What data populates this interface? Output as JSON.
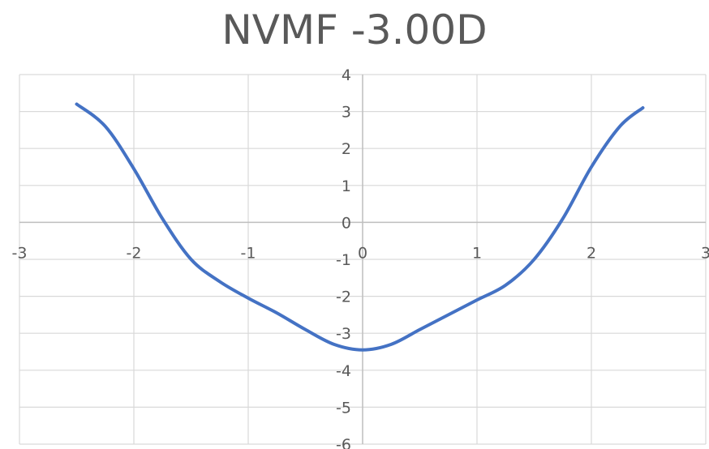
{
  "chart_data": {
    "type": "line",
    "title": "NVMF -3.00D",
    "xlabel": "",
    "ylabel": "",
    "xlim": [
      -3,
      3
    ],
    "ylim": [
      -6,
      4
    ],
    "x_ticks": [
      -3,
      -2,
      -1,
      0,
      1,
      2,
      3
    ],
    "y_ticks": [
      -6,
      -5,
      -4,
      -3,
      -2,
      -1,
      0,
      1,
      2,
      3,
      4
    ],
    "grid": true,
    "legend": "none",
    "series": [
      {
        "color": "#4472C4",
        "points": [
          [
            -2.5,
            3.2
          ],
          [
            -2.25,
            2.6
          ],
          [
            -2.0,
            1.45
          ],
          [
            -1.75,
            0.1
          ],
          [
            -1.5,
            -1.0
          ],
          [
            -1.25,
            -1.6
          ],
          [
            -1.0,
            -2.05
          ],
          [
            -0.75,
            -2.45
          ],
          [
            -0.5,
            -2.9
          ],
          [
            -0.25,
            -3.3
          ],
          [
            0.0,
            -3.45
          ],
          [
            0.25,
            -3.3
          ],
          [
            0.5,
            -2.9
          ],
          [
            0.75,
            -2.5
          ],
          [
            1.0,
            -2.1
          ],
          [
            1.25,
            -1.7
          ],
          [
            1.5,
            -1.0
          ],
          [
            1.75,
            0.1
          ],
          [
            2.0,
            1.5
          ],
          [
            2.25,
            2.6
          ],
          [
            2.45,
            3.1
          ]
        ]
      }
    ]
  }
}
